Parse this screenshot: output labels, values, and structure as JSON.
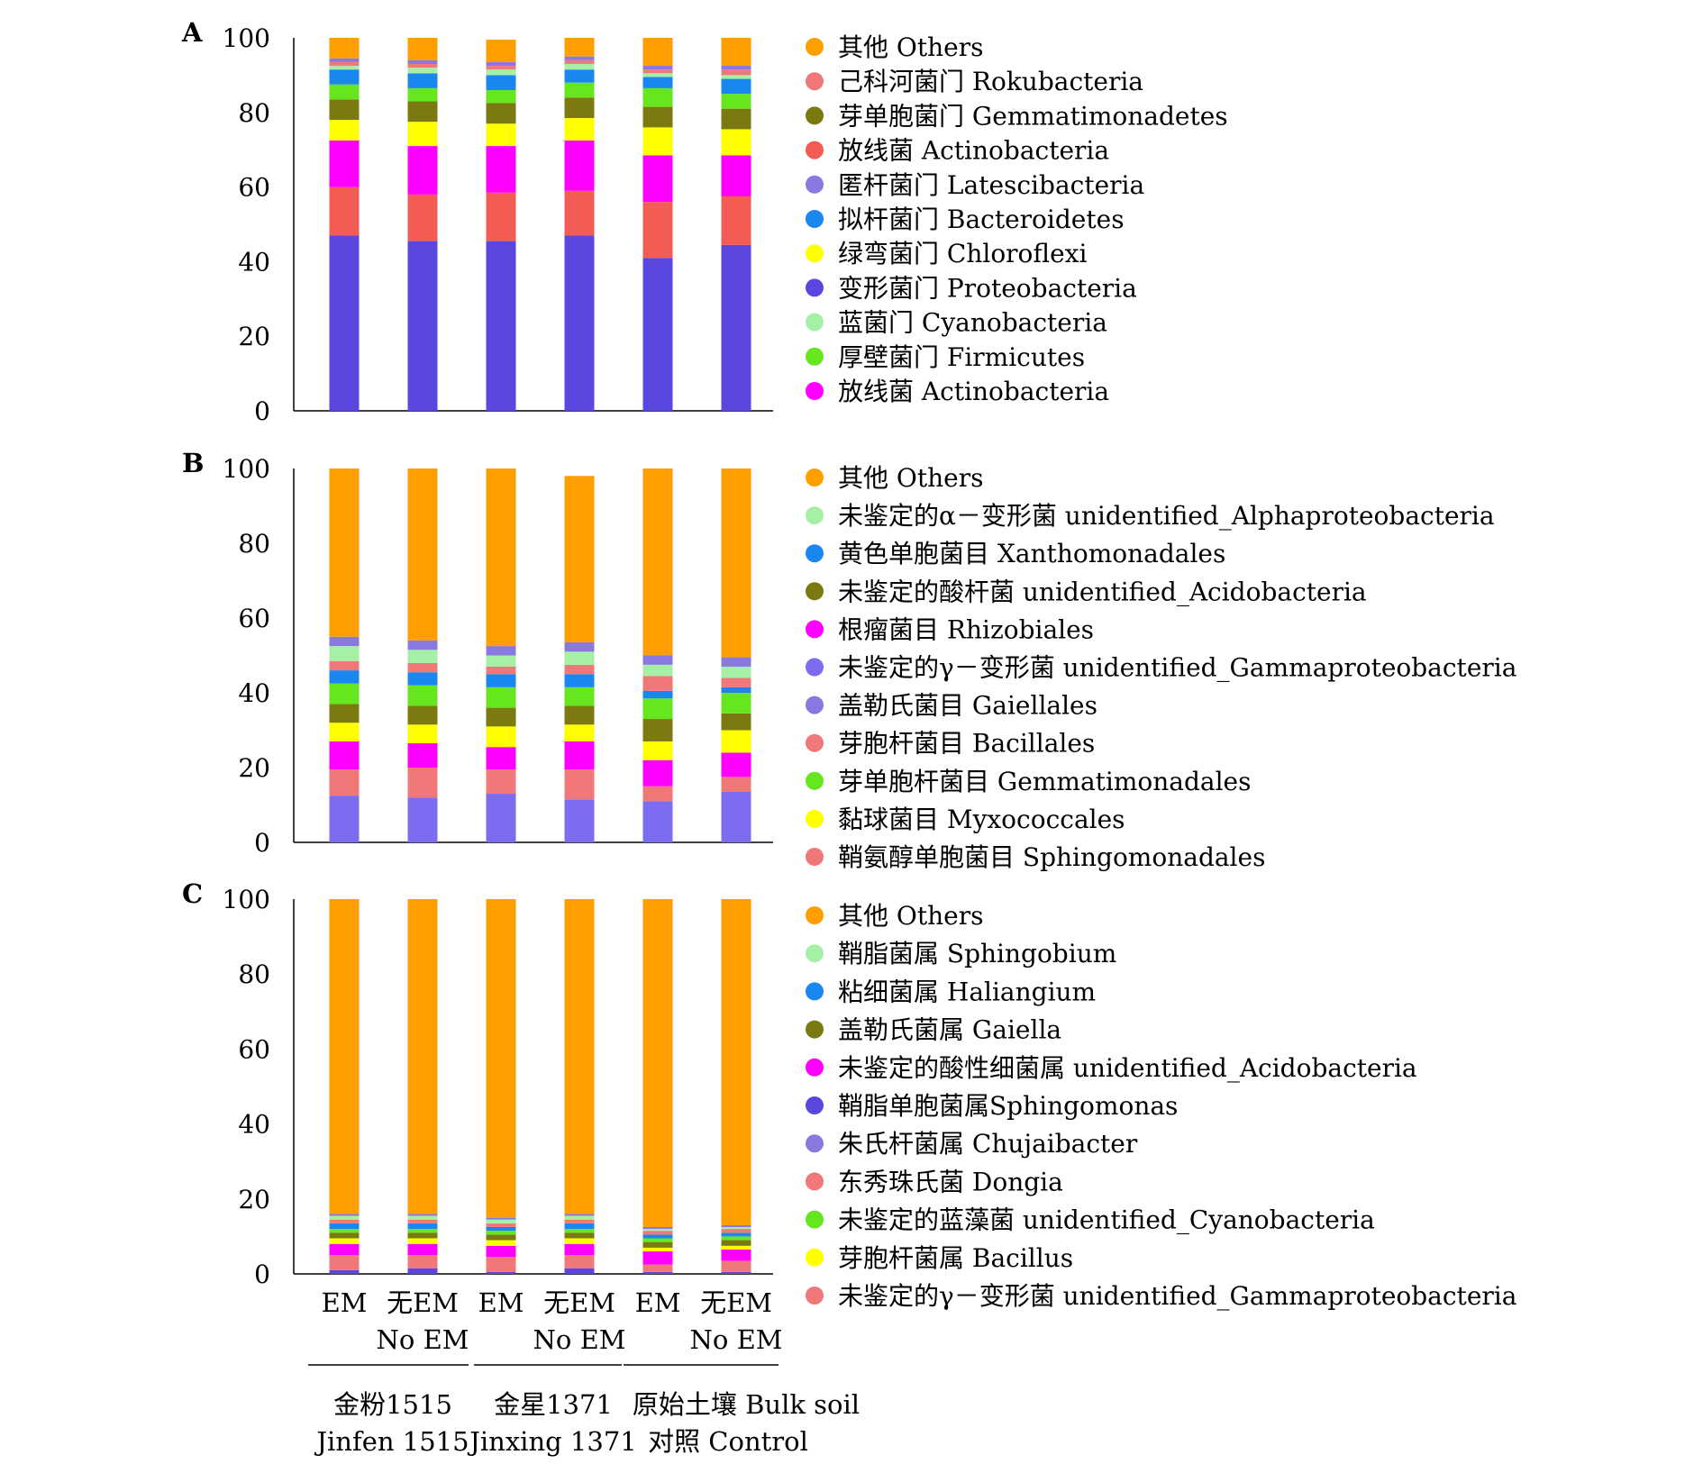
{
  "chart_data": [
    {
      "type": "bar",
      "stacked": true,
      "panel_label": "A",
      "ylim": [
        0,
        100
      ],
      "yticks": [
        "0",
        "20",
        "40",
        "60",
        "80",
        "100"
      ],
      "categories": [
        "EM",
        "无EM No EM",
        "EM",
        "无EM No EM",
        "EM",
        "无EM No EM"
      ],
      "legend_order": [
        "其他 Others",
        "己科河菌门 Rokubacteria",
        "芽单胞菌门 Gemmatimonadetes",
        "放线菌 Actinobacteria",
        "匿杆菌门 Latescibacteria",
        "拟杆菌门 Bacteroidetes",
        "绿弯菌门 Chloroflexi",
        "变形菌门 Proteobacteria",
        "蓝菌门 Cyanobacteria",
        "厚壁菌门 Firmicutes",
        "放线菌 Actinobacteria"
      ],
      "series": [
        {
          "name": "变形菌门 Proteobacteria",
          "color": "#5a47e0",
          "values": [
            47,
            45.5,
            45.5,
            47,
            41,
            44.5
          ]
        },
        {
          "name": "放线菌 Actinobacteria",
          "color": "#f25c54",
          "values": [
            13,
            12.5,
            13,
            12,
            15,
            13
          ]
        },
        {
          "name": "放线菌 Actinobacteria",
          "color": "#ff00ff",
          "values": [
            12.5,
            13,
            12.5,
            13.5,
            12.5,
            11
          ]
        },
        {
          "name": "绿弯菌门 Chloroflexi",
          "color": "#ffff00",
          "values": [
            5.5,
            6.5,
            6,
            6,
            7.5,
            7
          ]
        },
        {
          "name": "芽单胞菌门 Gemmatimonadetes",
          "color": "#7a7a10",
          "values": [
            5.5,
            5.5,
            5.5,
            5.5,
            5.5,
            5.5
          ]
        },
        {
          "name": "厚壁菌门 Firmicutes",
          "color": "#66e61f",
          "values": [
            4,
            3.5,
            3.5,
            4,
            5,
            4
          ]
        },
        {
          "name": "拟杆菌门 Bacteroidetes",
          "color": "#1a86f0",
          "values": [
            4,
            4,
            4,
            3.5,
            3,
            4
          ]
        },
        {
          "name": "蓝菌门 Cyanobacteria",
          "color": "#a6f0a6",
          "values": [
            1,
            1.5,
            1.5,
            1.5,
            1,
            1
          ]
        },
        {
          "name": "己科河菌门 Rokubacteria",
          "color": "#f07878",
          "values": [
            1,
            1,
            1,
            1,
            1,
            1.5
          ]
        },
        {
          "name": "匿杆菌门 Latescibacteria",
          "color": "#8878e0",
          "values": [
            1,
            1,
            1,
            1,
            1,
            1
          ]
        },
        {
          "name": "其他 Others",
          "color": "#ff9e00",
          "values": [
            5.5,
            6,
            6,
            5,
            7.5,
            7.5
          ]
        }
      ]
    },
    {
      "type": "bar",
      "stacked": true,
      "panel_label": "B",
      "ylim": [
        0,
        100
      ],
      "yticks": [
        "0",
        "20",
        "40",
        "60",
        "80",
        "100"
      ],
      "categories": [
        "EM",
        "无EM No EM",
        "EM",
        "无EM No EM",
        "EM",
        "无EM No EM"
      ],
      "legend_order": [
        "其他 Others",
        "未鉴定的α－变形菌 unidentified_Alphaproteobacteria",
        "黄色单胞菌目 Xanthomonadales",
        "未鉴定的酸杆菌 unidentified_Acidobacteria",
        "根瘤菌目 Rhizobiales",
        "未鉴定的γ－变形菌 unidentified_Gammaproteobacteria",
        "盖勒氏菌目 Gaiellales",
        "芽胞杆菌目 Bacillales",
        "芽单胞杆菌目 Gemmatimonadales",
        "黏球菌目 Myxococcales",
        "鞘氨醇单胞菌目 Sphingomonadales"
      ],
      "series": [
        {
          "name": "未鉴定的γ－变形菌 unidentified_Gammaproteobacteria",
          "color": "#7b6cf0",
          "values": [
            12.5,
            12,
            13,
            11.5,
            11,
            13.5
          ]
        },
        {
          "name": "鞘氨醇单胞菌目 Sphingomonadales",
          "color": "#f07878",
          "values": [
            7,
            8,
            6.5,
            8,
            4,
            4
          ]
        },
        {
          "name": "根瘤菌目 Rhizobiales",
          "color": "#ff00ff",
          "values": [
            7.5,
            6.5,
            6,
            7.5,
            7,
            6.5
          ]
        },
        {
          "name": "黏球菌目 Myxococcales",
          "color": "#ffff00",
          "values": [
            5,
            5,
            5.5,
            4.5,
            5,
            6
          ]
        },
        {
          "name": "未鉴定的酸杆菌 unidentified_Acidobacteria",
          "color": "#7a7a10",
          "values": [
            5,
            5,
            5,
            5,
            6,
            4.5
          ]
        },
        {
          "name": "芽单胞杆菌目 Gemmatimonadales",
          "color": "#66e61f",
          "values": [
            5.5,
            5.5,
            5.5,
            5,
            5.5,
            5.5
          ]
        },
        {
          "name": "黄色单胞菌目 Xanthomonadales",
          "color": "#1a86f0",
          "values": [
            3.5,
            3.5,
            3.5,
            3.5,
            2,
            1.5
          ]
        },
        {
          "name": "芽胞杆菌目 Bacillales",
          "color": "#f07878",
          "values": [
            2.5,
            2.5,
            2,
            2.5,
            4,
            2.5
          ]
        },
        {
          "name": "未鉴定的α－变形菌 unidentified_Alphaproteobacteria",
          "color": "#a6f0a6",
          "values": [
            4,
            3.5,
            3,
            3.5,
            3,
            3
          ]
        },
        {
          "name": "盖勒氏菌目 Gaiellales",
          "color": "#8878e0",
          "values": [
            2.5,
            2.5,
            2.5,
            2.5,
            2.5,
            2.5
          ]
        },
        {
          "name": "其他 Others",
          "color": "#ff9e00",
          "values": [
            45,
            46,
            47.5,
            44.5,
            50,
            50.5
          ]
        }
      ]
    },
    {
      "type": "bar",
      "stacked": true,
      "panel_label": "C",
      "ylim": [
        0,
        100
      ],
      "yticks": [
        "0",
        "20",
        "40",
        "60",
        "80",
        "100"
      ],
      "categories": [
        "EM",
        "无EM No EM",
        "EM",
        "无EM No EM",
        "EM",
        "无EM No EM"
      ],
      "legend_order": [
        "其他 Others",
        "鞘脂菌属 Sphingobium",
        "粘细菌属 Haliangium",
        "盖勒氏菌属 Gaiella",
        "未鉴定的酸性细菌属 unidentified_Acidobacteria",
        "鞘脂单胞菌属Sphingomonas",
        "朱氏杆菌属 Chujaibacter",
        "东秀珠氏菌 Dongia",
        "未鉴定的蓝藻菌 unidentified_Cyanobacteria",
        "芽胞杆菌属 Bacillus",
        "未鉴定的γ－变形菌 unidentified_Gammaproteobacteria"
      ],
      "series": [
        {
          "name": "鞘脂单胞菌属Sphingomonas",
          "color": "#5a47e0",
          "values": [
            1,
            1.5,
            0.5,
            1.5,
            0.5,
            0.5
          ]
        },
        {
          "name": "东秀珠氏菌 Dongia",
          "color": "#f07878",
          "values": [
            4,
            3.5,
            4,
            3.5,
            2,
            3
          ]
        },
        {
          "name": "未鉴定的酸性细菌属 unidentified_Acidobacteria",
          "color": "#ff00ff",
          "values": [
            3,
            3,
            3,
            3,
            3.5,
            3
          ]
        },
        {
          "name": "芽胞杆菌属 Bacillus",
          "color": "#ffff00",
          "values": [
            1.5,
            1.5,
            1.5,
            1.5,
            1,
            1
          ]
        },
        {
          "name": "盖勒氏菌属 Gaiella",
          "color": "#7a7a10",
          "values": [
            1.5,
            1.5,
            1.5,
            1.5,
            1.5,
            1.5
          ]
        },
        {
          "name": "未鉴定的蓝藻菌 unidentified_Cyanobacteria",
          "color": "#66e61f",
          "values": [
            1,
            1,
            1,
            1,
            1,
            1
          ]
        },
        {
          "name": "粘细菌属 Haliangium",
          "color": "#1a86f0",
          "values": [
            1.5,
            1.5,
            1,
            1.5,
            1,
            1
          ]
        },
        {
          "name": "未鉴定的γ－变形菌 unidentified_Gammaproteobacteria",
          "color": "#f07878",
          "values": [
            1,
            1,
            1,
            1,
            1,
            1
          ]
        },
        {
          "name": "鞘脂菌属 Sphingobium",
          "color": "#a6f0a6",
          "values": [
            1,
            1,
            1,
            1,
            0.5,
            0.5
          ]
        },
        {
          "name": "朱氏杆菌属 Chujaibacter",
          "color": "#8878e0",
          "values": [
            0.5,
            0.5,
            0.5,
            0.5,
            0.5,
            0.5
          ]
        },
        {
          "name": "其他 Others",
          "color": "#ff9e00",
          "values": [
            84,
            84,
            85,
            84,
            87.5,
            87
          ]
        }
      ]
    }
  ],
  "legends": [
    [
      {
        "text": "其他 Others",
        "color": "#ff9e00"
      },
      {
        "text": "己科河菌门 Rokubacteria",
        "color": "#f07878"
      },
      {
        "text": "芽单胞菌门 Gemmatimonadetes",
        "color": "#7a7a10"
      },
      {
        "text": "放线菌 Actinobacteria",
        "color": "#f25c54"
      },
      {
        "text": "匿杆菌门 Latescibacteria",
        "color": "#8878e0"
      },
      {
        "text": "拟杆菌门 Bacteroidetes",
        "color": "#1a86f0"
      },
      {
        "text": "绿弯菌门 Chloroflexi",
        "color": "#ffff00"
      },
      {
        "text": "变形菌门 Proteobacteria",
        "color": "#5a47e0"
      },
      {
        "text": "蓝菌门 Cyanobacteria",
        "color": "#a6f0a6"
      },
      {
        "text": "厚壁菌门 Firmicutes",
        "color": "#66e61f"
      },
      {
        "text": "放线菌 Actinobacteria",
        "color": "#ff00ff"
      }
    ],
    [
      {
        "text": "其他 Others",
        "color": "#ff9e00"
      },
      {
        "text": "未鉴定的α－变形菌 unidentified_Alphaproteobacteria",
        "color": "#a6f0a6"
      },
      {
        "text": "黄色单胞菌目 Xanthomonadales",
        "color": "#1a86f0"
      },
      {
        "text": "未鉴定的酸杆菌 unidentified_Acidobacteria",
        "color": "#7a7a10"
      },
      {
        "text": "根瘤菌目 Rhizobiales",
        "color": "#ff00ff"
      },
      {
        "text": "未鉴定的γ－变形菌 unidentified_Gammaproteobacteria",
        "color": "#7b6cf0"
      },
      {
        "text": "盖勒氏菌目 Gaiellales",
        "color": "#8878e0"
      },
      {
        "text": "芽胞杆菌目 Bacillales",
        "color": "#f07878"
      },
      {
        "text": "芽单胞杆菌目 Gemmatimonadales",
        "color": "#66e61f"
      },
      {
        "text": "黏球菌目 Myxococcales",
        "color": "#ffff00"
      },
      {
        "text": "鞘氨醇单胞菌目 Sphingomonadales",
        "color": "#f07878"
      }
    ],
    [
      {
        "text": "其他 Others",
        "color": "#ff9e00"
      },
      {
        "text": "鞘脂菌属 Sphingobium",
        "color": "#a6f0a6"
      },
      {
        "text": "粘细菌属 Haliangium",
        "color": "#1a86f0"
      },
      {
        "text": "盖勒氏菌属 Gaiella",
        "color": "#7a7a10"
      },
      {
        "text": "未鉴定的酸性细菌属 unidentified_Acidobacteria",
        "color": "#ff00ff"
      },
      {
        "text": "鞘脂单胞菌属Sphingomonas",
        "color": "#5a47e0"
      },
      {
        "text": "朱氏杆菌属 Chujaibacter",
        "color": "#8878e0"
      },
      {
        "text": "东秀珠氏菌 Dongia",
        "color": "#f07878"
      },
      {
        "text": "未鉴定的蓝藻菌 unidentified_Cyanobacteria",
        "color": "#66e61f"
      },
      {
        "text": "芽胞杆菌属 Bacillus",
        "color": "#ffff00"
      },
      {
        "text": "未鉴定的γ－变形菌 unidentified_Gammaproteobacteria",
        "color": "#f07878"
      }
    ]
  ],
  "x_labels": [
    [
      "EM"
    ],
    [
      "无EM",
      "No EM"
    ],
    [
      "EM"
    ],
    [
      "无EM",
      "No EM"
    ],
    [
      "EM"
    ],
    [
      "无EM",
      "No EM"
    ]
  ],
  "groups": [
    {
      "line1": "金粉1515",
      "line2": "Jinfen 1515"
    },
    {
      "line1": "金星1371",
      "line2": "Jinxing 1371"
    },
    {
      "line1": "原始土壤 Bulk soil",
      "line2": "对照 Control"
    }
  ]
}
